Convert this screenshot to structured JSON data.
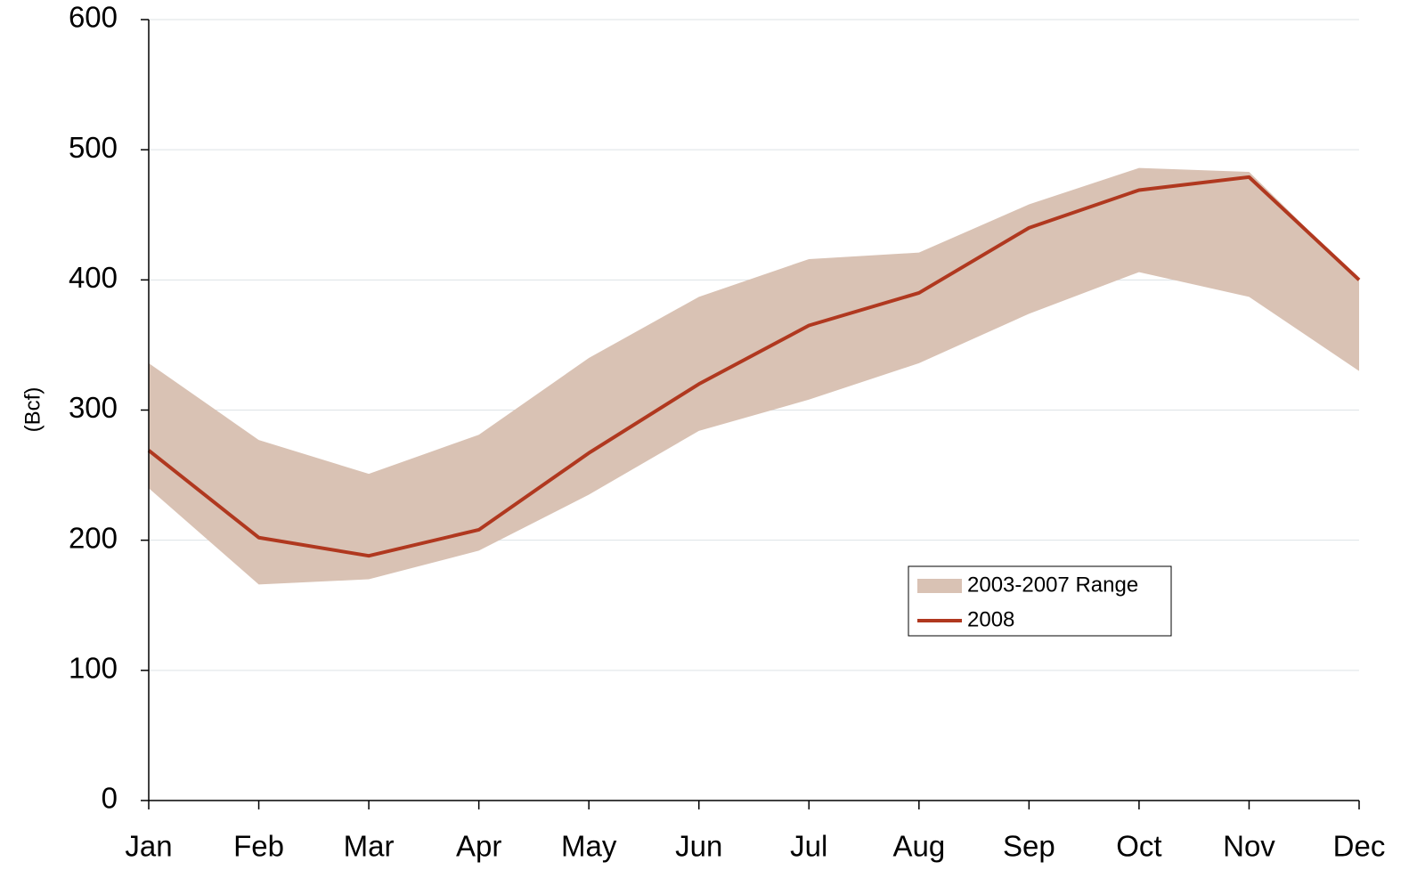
{
  "chart_data": {
    "type": "line",
    "y_label": "(Bcf)",
    "categories": [
      "Jan",
      "Feb",
      "Mar",
      "Apr",
      "May",
      "Jun",
      "Jul",
      "Aug",
      "Sep",
      "Oct",
      "Nov",
      "Dec"
    ],
    "series": [
      {
        "name": "2003-2007 Range",
        "color": "#d9c2b4",
        "high": [
          336,
          277,
          251,
          281,
          340,
          387,
          416,
          421,
          458,
          486,
          483,
          400
        ],
        "low": [
          240,
          166,
          170,
          192,
          235,
          284,
          308,
          336,
          374,
          406,
          387,
          330
        ]
      },
      {
        "name": "2008",
        "color": "#b0381f",
        "values": [
          269,
          202,
          188,
          208,
          267,
          320,
          365,
          390,
          440,
          469,
          479,
          400
        ]
      }
    ],
    "ylim": [
      0,
      600
    ],
    "yticks": [
      0,
      100,
      200,
      300,
      400,
      500,
      600
    ],
    "grid": true
  }
}
